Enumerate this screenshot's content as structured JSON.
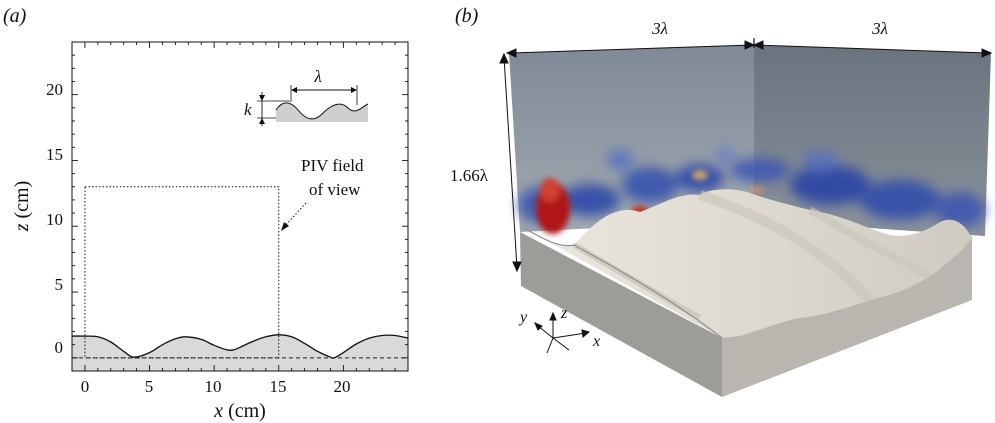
{
  "panel_a": {
    "label": "(a)",
    "xlabel_var": "x",
    "xlabel_unit": "(cm)",
    "ylabel_var": "z",
    "ylabel_unit": "(cm)",
    "xticks": [
      "0",
      "5",
      "10",
      "15",
      "20"
    ],
    "yticks": [
      "0",
      "5",
      "10",
      "15",
      "20"
    ],
    "piv_line1": "PIV field",
    "piv_line2": "of view",
    "inset_lambda": "λ",
    "inset_k": "k"
  },
  "panel_b": {
    "label": "(b)",
    "width_left": "3λ",
    "width_right": "3λ",
    "height": "1.66λ",
    "axis_x": "x",
    "axis_y": "y",
    "axis_z": "z"
  },
  "colors": {
    "ground_fill": "#d9d9d9",
    "wall_left": "#7d8894",
    "wall_right": "#6a737e",
    "block_side": "#b8b6b1",
    "block_top": "#dedad2",
    "eddy_blue": "#2f4aa8",
    "eddy_red": "#b01818"
  },
  "chart_data": {
    "type": "line",
    "title": "",
    "xlabel": "x (cm)",
    "ylabel": "z (cm)",
    "xlim": [
      -1,
      25
    ],
    "ylim": [
      -1,
      24
    ],
    "grid": false,
    "series": [
      {
        "x": [
          -1,
          0,
          1,
          2,
          3,
          3.8,
          5,
          6,
          7,
          7.8,
          9,
          10,
          11,
          11.5,
          12,
          13,
          14,
          15,
          16,
          17,
          18,
          19,
          19.3,
          20,
          21,
          22,
          23,
          24,
          25
        ],
        "y": [
          1.65,
          1.65,
          1.6,
          1.2,
          0.5,
          0.05,
          0.4,
          1.0,
          1.45,
          1.6,
          1.4,
          0.95,
          0.6,
          0.6,
          0.8,
          1.25,
          1.6,
          1.75,
          1.6,
          1.1,
          0.5,
          0.05,
          0.0,
          0.4,
          1.05,
          1.5,
          1.7,
          1.7,
          1.5
        ]
      }
    ],
    "annotations": [
      {
        "type": "dashed-line",
        "y": 0
      },
      {
        "type": "dotted-box",
        "label": "PIV field of view",
        "x": [
          0,
          15
        ],
        "y": [
          0,
          13
        ]
      }
    ]
  }
}
